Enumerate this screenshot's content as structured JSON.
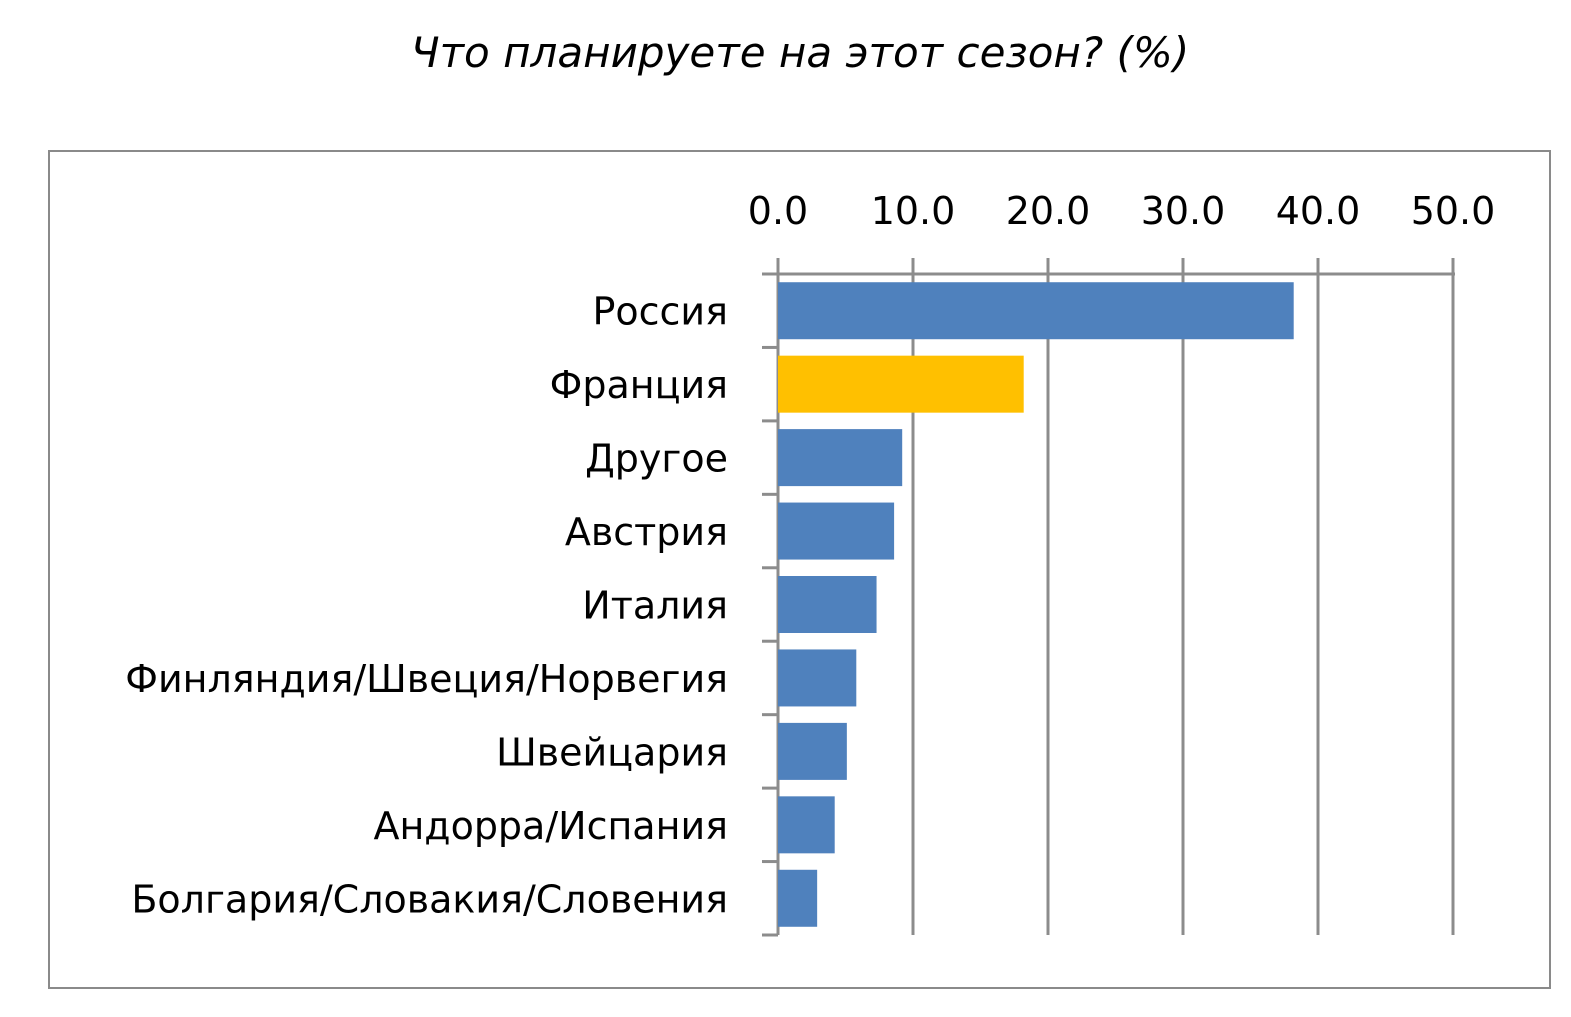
{
  "chart_data": {
    "type": "bar",
    "orientation": "horizontal",
    "title": "Что планируете на этот сезон? (%)",
    "xlim": [
      0,
      50
    ],
    "x_ticks": [
      "0.0",
      "10.0",
      "20.0",
      "30.0",
      "40.0",
      "50.0"
    ],
    "x_axis_position": "top",
    "grid": true,
    "categories": [
      "Россия",
      "Франция",
      "Другое",
      "Австрия",
      "Италия",
      "Финляндия/Швеция/Норвегия",
      "Швейцария",
      "Андорра/Испания",
      "Болгария/Словакия/Словения"
    ],
    "values": [
      38.2,
      18.2,
      9.2,
      8.6,
      7.3,
      5.8,
      5.1,
      4.2,
      2.9
    ],
    "colors": [
      "#4f81bd",
      "#ffc000",
      "#4f81bd",
      "#4f81bd",
      "#4f81bd",
      "#4f81bd",
      "#4f81bd",
      "#4f81bd",
      "#4f81bd"
    ]
  }
}
